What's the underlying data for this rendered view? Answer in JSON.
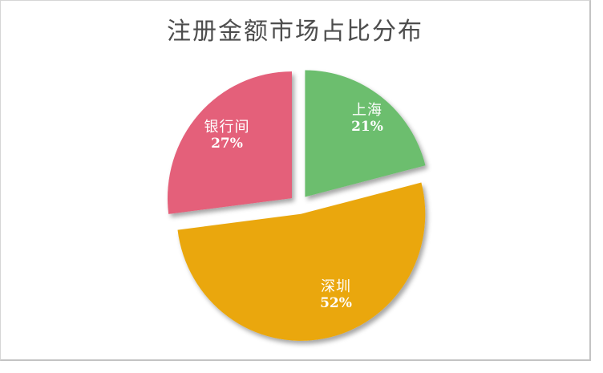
{
  "chart_data": {
    "type": "pie",
    "title": "注册金额市场占比分布",
    "title_color": "#4d4d4d",
    "background": "#ffffff",
    "legend": "none",
    "direction": "clockwise",
    "start_angle_deg": 0,
    "exploded": true,
    "labels_inside": true,
    "unit": "%",
    "slices": [
      {
        "key": "shanghai",
        "label": "上海",
        "value": 21,
        "pct_label": "21%",
        "color": "#6cbe6e"
      },
      {
        "key": "shenzhen",
        "label": "深圳",
        "value": 52,
        "pct_label": "52%",
        "color": "#eaa70b"
      },
      {
        "key": "interbank",
        "label": "银行间",
        "value": 27,
        "pct_label": "27%",
        "color": "#e4607a"
      }
    ]
  }
}
